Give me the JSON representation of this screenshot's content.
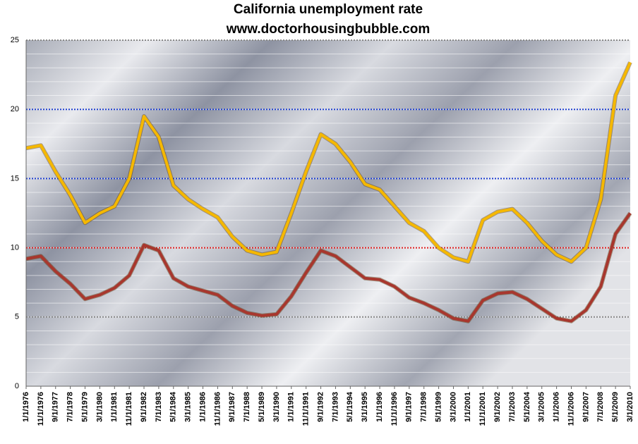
{
  "chart_data": {
    "type": "line",
    "title": "California unemployment rate",
    "subtitle": "www.doctorhousingbubble.com",
    "categories": [
      "1/1/1976",
      "11/1/1976",
      "9/1/1977",
      "7/1/1978",
      "5/1/1979",
      "3/1/1980",
      "1/1/1981",
      "11/1/1981",
      "9/1/1982",
      "7/1/1983",
      "5/1/1984",
      "3/1/1985",
      "1/1/1986",
      "11/1/1986",
      "9/1/1987",
      "7/1/1988",
      "5/1/1989",
      "3/1/1990",
      "1/1/1991",
      "11/1/1991",
      "9/1/1992",
      "7/1/1993",
      "5/1/1994",
      "3/1/1995",
      "1/1/1996",
      "11/1/1996",
      "9/1/1997",
      "7/1/1998",
      "5/1/1999",
      "3/1/2000",
      "1/1/2001",
      "11/1/2001",
      "9/1/2002",
      "7/1/2003",
      "5/1/2004",
      "3/1/2005",
      "1/1/2006",
      "11/1/2006",
      "9/1/2007",
      "7/1/2008",
      "5/1/2009",
      "3/1/2010"
    ],
    "series": [
      {
        "color": "#f5b800",
        "values": [
          17.2,
          17.4,
          15.5,
          13.8,
          11.8,
          12.5,
          13.0,
          15.0,
          19.5,
          18.0,
          14.5,
          13.5,
          12.8,
          12.2,
          10.8,
          9.8,
          9.5,
          9.7,
          12.5,
          15.5,
          18.2,
          17.5,
          16.2,
          14.6,
          14.2,
          13.0,
          11.8,
          11.2,
          10.0,
          9.3,
          9.0,
          12.0,
          12.6,
          12.8,
          11.8,
          10.5,
          9.5,
          9.0,
          10.0,
          13.5,
          21.0,
          23.4
        ]
      },
      {
        "color": "#a8372e",
        "values": [
          9.2,
          9.4,
          8.3,
          7.4,
          6.3,
          6.6,
          7.1,
          8.0,
          10.2,
          9.8,
          7.8,
          7.2,
          6.9,
          6.6,
          5.8,
          5.3,
          5.1,
          5.2,
          6.5,
          8.2,
          9.8,
          9.4,
          8.6,
          7.8,
          7.7,
          7.2,
          6.4,
          6.0,
          5.5,
          4.9,
          4.7,
          6.2,
          6.7,
          6.8,
          6.3,
          5.6,
          4.9,
          4.7,
          5.5,
          7.2,
          11.0,
          12.5
        ]
      }
    ],
    "ylim": [
      0,
      25
    ],
    "yticks": [
      0,
      5,
      10,
      15,
      20,
      25
    ],
    "grid_line_colors": [
      "#888888",
      "#888888",
      "#e02020",
      "#2040d0",
      "#2040d0",
      "#888888"
    ],
    "minor_grid": true
  }
}
